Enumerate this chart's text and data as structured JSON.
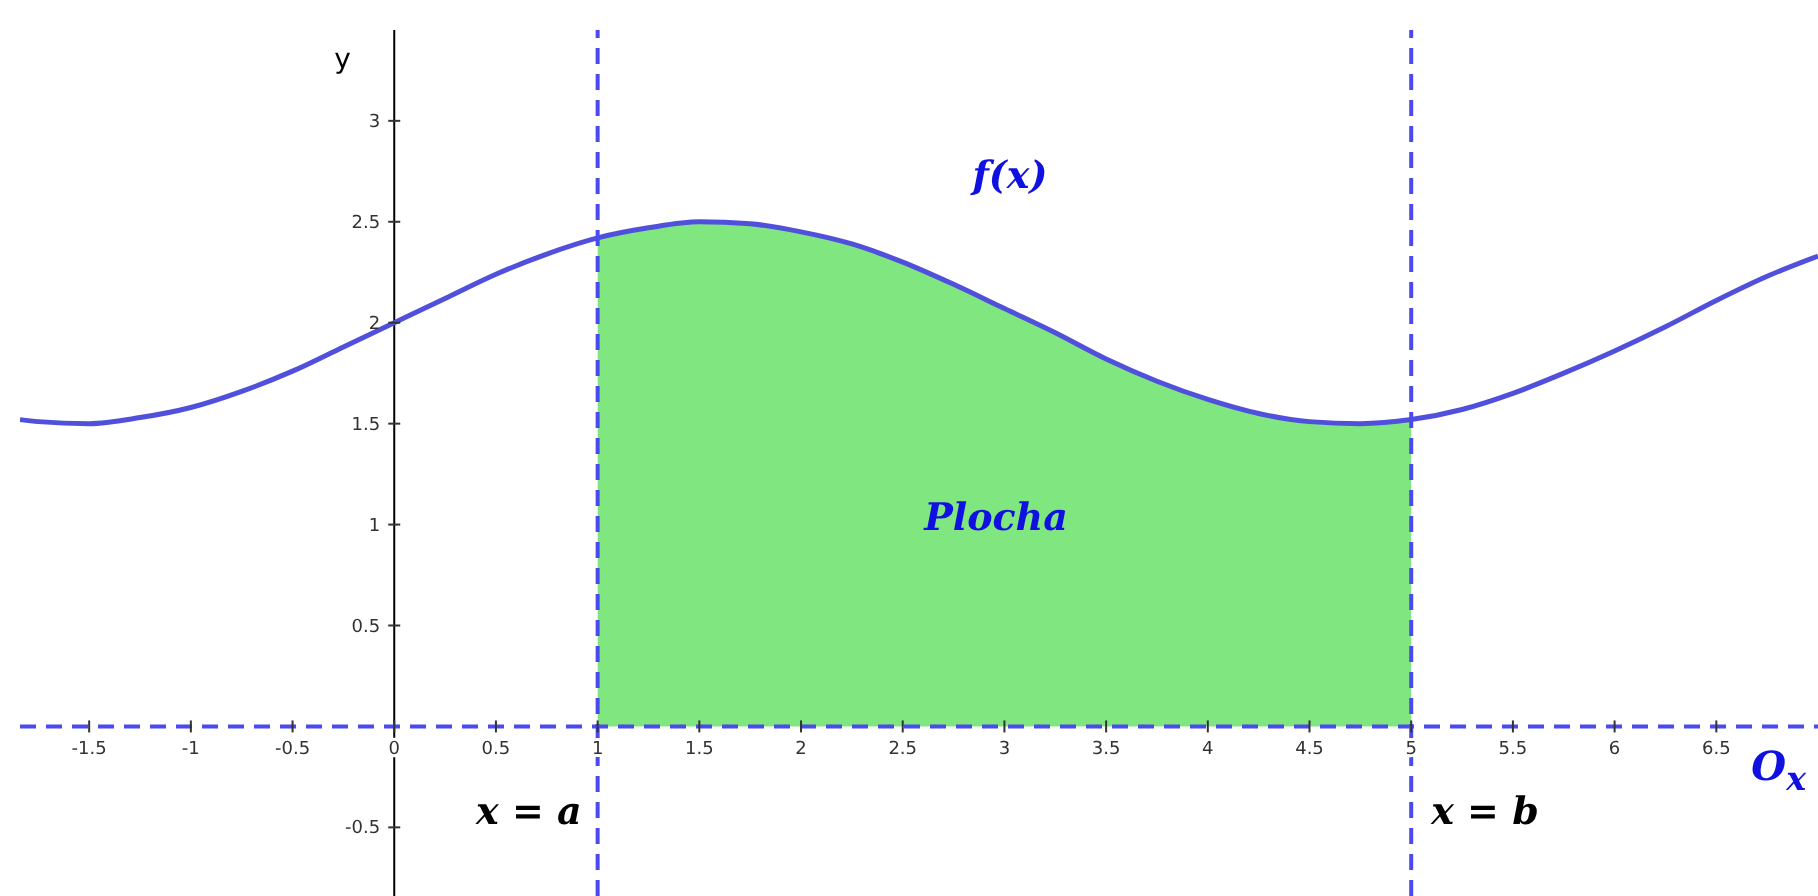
{
  "chart_data": {
    "type": "line",
    "xlabel": "O$_{x}$",
    "ylabel": "y",
    "xlim": [
      -1.84,
      7.0
    ],
    "ylim": [
      -0.84,
      3.45
    ],
    "xticks": [
      -1.5,
      -1,
      -0.5,
      {
        "value": 0,
        "label": "0"
      },
      0.5,
      1,
      1.5,
      2,
      2.5,
      3,
      3.5,
      4,
      4.5,
      5,
      5.5,
      6,
      6.5
    ],
    "yticks": [
      -0.5,
      0.5,
      1,
      1.5,
      2,
      2.5,
      3
    ],
    "grid": false,
    "marker": "none",
    "line_style": "solid",
    "series": [
      {
        "color": "#5050dc",
        "x": [
          -1.84,
          -1.75,
          -1.5,
          -1.25,
          -1,
          -0.75,
          -0.5,
          -0.25,
          0,
          0.25,
          0.5,
          0.75,
          1,
          1.25,
          1.5,
          1.75,
          2,
          2.25,
          2.5,
          2.75,
          3,
          3.25,
          3.5,
          3.75,
          4,
          4.25,
          4.5,
          4.75,
          5,
          5.25,
          5.5,
          5.75,
          6,
          6.25,
          6.5,
          6.75,
          7
        ],
        "values": [
          1.52,
          1.51,
          1.5,
          1.53,
          1.58,
          1.66,
          1.76,
          1.88,
          2,
          2.12,
          2.24,
          2.34,
          2.42,
          2.47,
          2.5,
          2.49,
          2.45,
          2.39,
          2.3,
          2.19,
          2.07,
          1.95,
          1.82,
          1.71,
          1.62,
          1.55,
          1.51,
          1.5,
          1.52,
          1.57,
          1.65,
          1.75,
          1.86,
          1.98,
          2.11,
          2.23,
          2.33
        ]
      },
      {
        "type": "area",
        "color": "#80e680",
        "x": [
          1,
          1.25,
          1.5,
          1.75,
          2,
          2.25,
          2.5,
          2.75,
          3,
          3.25,
          3.5,
          3.75,
          4,
          4.25,
          4.5,
          4.75,
          5
        ],
        "values": [
          2.42,
          2.47,
          2.5,
          2.49,
          2.45,
          2.39,
          2.3,
          2.19,
          2.07,
          1.95,
          1.82,
          1.71,
          1.62,
          1.55,
          1.51,
          1.5,
          1.52
        ]
      }
    ],
    "ref_lines": [
      {
        "axis": "x",
        "value": 1,
        "label": "x = a",
        "color": "#4a4af0",
        "line_style": "dashed"
      },
      {
        "axis": "x",
        "value": 5,
        "label": "x = b",
        "color": "#4a4af0",
        "line_style": "dashed"
      },
      {
        "axis": "y",
        "value": 0,
        "color": "#4a4af0",
        "line_style": "dashed"
      }
    ],
    "annotations": [
      "f(x)",
      "Plocha"
    ]
  }
}
